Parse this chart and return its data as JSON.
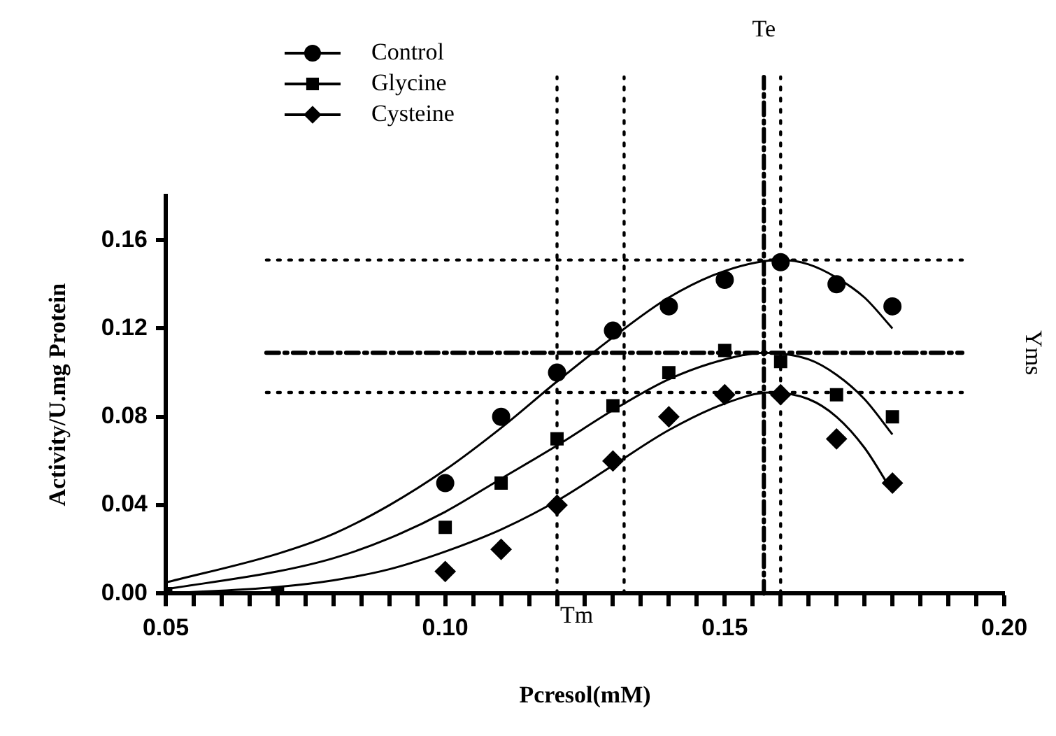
{
  "chart_data": {
    "type": "scatter",
    "xlabel": "Pcresol(mM)",
    "ylabel": "Activity/U.mg Protein",
    "xlim": [
      0.05,
      0.2
    ],
    "ylim": [
      0,
      0.18
    ],
    "xticks": [
      0.05,
      {
        "value": 0.055,
        "label": null
      },
      {
        "value": 0.06,
        "label": null
      },
      {
        "value": 0.065,
        "label": null
      },
      {
        "value": 0.07,
        "label": null
      },
      {
        "value": 0.075,
        "label": null
      },
      {
        "value": 0.08,
        "label": null
      },
      {
        "value": 0.085,
        "label": null
      },
      {
        "value": 0.09,
        "label": null
      },
      {
        "value": 0.095,
        "label": null
      },
      {
        "value": 0.1,
        "label": "0.10"
      },
      {
        "value": 0.105,
        "label": null
      },
      {
        "value": 0.11,
        "label": null
      },
      {
        "value": 0.115,
        "label": null
      },
      {
        "value": 0.12,
        "label": null
      },
      {
        "value": 0.125,
        "label": null
      },
      {
        "value": 0.13,
        "label": null
      },
      {
        "value": 0.135,
        "label": null
      },
      {
        "value": 0.14,
        "label": null
      },
      {
        "value": 0.145,
        "label": null
      },
      0.15,
      {
        "value": 0.155,
        "label": null
      },
      {
        "value": 0.16,
        "label": null
      },
      {
        "value": 0.165,
        "label": null
      },
      {
        "value": 0.17,
        "label": null
      },
      {
        "value": 0.175,
        "label": null
      },
      {
        "value": 0.18,
        "label": null
      },
      {
        "value": 0.185,
        "label": null
      },
      {
        "value": 0.19,
        "label": null
      },
      {
        "value": 0.195,
        "label": null
      },
      {
        "value": 0.2,
        "label": "0.20"
      }
    ],
    "yticks": [
      {
        "value": 0,
        "label": "0.00"
      },
      0.04,
      0.08,
      0.12,
      0.16
    ],
    "grid": false,
    "legend": "top left",
    "series": [
      {
        "name": "Control",
        "color": "#000000",
        "marker": "circle",
        "x": [
          0.1,
          0.11,
          0.12,
          0.13,
          0.14,
          0.15,
          0.16,
          0.17,
          0.18
        ],
        "values": [
          0.05,
          0.08,
          0.1,
          0.119,
          0.13,
          0.142,
          0.15,
          0.14,
          0.13
        ]
      },
      {
        "name": "Glycine",
        "color": "#000000",
        "marker": "square",
        "x": [
          0.05,
          0.07,
          0.1,
          0.11,
          0.12,
          0.13,
          0.14,
          0.15,
          0.16,
          0.17,
          0.18
        ],
        "values": [
          0,
          0,
          0.03,
          0.05,
          0.07,
          0.085,
          0.1,
          0.11,
          0.105,
          0.09,
          0.08
        ]
      },
      {
        "name": "Cysteine",
        "color": "#000000",
        "marker": "diamond",
        "x": [
          0.1,
          0.11,
          0.12,
          0.13,
          0.14,
          0.15,
          0.16,
          0.17,
          0.18
        ],
        "values": [
          0.01,
          0.02,
          0.04,
          0.06,
          0.08,
          0.09,
          0.09,
          0.07,
          0.05
        ]
      },
      {
        "type": "line",
        "color": "#000000",
        "marker": "none",
        "x": [
          0.05,
          0.07,
          0.08,
          0.09,
          0.1,
          0.11,
          0.12,
          0.13,
          0.14,
          0.15,
          0.16,
          0.165,
          0.17,
          0.175,
          0.18
        ],
        "values": [
          0.005,
          0.018,
          0.027,
          0.04,
          0.056,
          0.075,
          0.096,
          0.116,
          0.134,
          0.146,
          0.151,
          0.149,
          0.143,
          0.134,
          0.12
        ]
      },
      {
        "type": "line",
        "color": "#000000",
        "marker": "none",
        "x": [
          0.05,
          0.07,
          0.08,
          0.09,
          0.1,
          0.11,
          0.12,
          0.13,
          0.14,
          0.15,
          0.157,
          0.165,
          0.17,
          0.175,
          0.18
        ],
        "values": [
          0.002,
          0.01,
          0.016,
          0.025,
          0.037,
          0.052,
          0.067,
          0.083,
          0.097,
          0.106,
          0.109,
          0.106,
          0.099,
          0.088,
          0.072
        ]
      },
      {
        "type": "line",
        "color": "#000000",
        "marker": "none",
        "x": [
          0.05,
          0.07,
          0.08,
          0.09,
          0.1,
          0.11,
          0.12,
          0.13,
          0.14,
          0.15,
          0.158,
          0.165,
          0.17,
          0.175,
          0.18
        ],
        "values": [
          0,
          0.003,
          0.006,
          0.011,
          0.019,
          0.029,
          0.042,
          0.058,
          0.074,
          0.086,
          0.091,
          0.088,
          0.08,
          0.066,
          0.046
        ]
      }
    ],
    "ref_lines": [
      {
        "axis": "y",
        "value": 0.151,
        "line_style": "dotted",
        "color": "#000000"
      },
      {
        "axis": "y",
        "value": 0.109,
        "label": "Yms",
        "line_style": "dashed",
        "color": "#000000"
      },
      {
        "axis": "y",
        "value": 0.091,
        "line_style": "dotted",
        "color": "#000000"
      },
      {
        "axis": "x",
        "value": 0.12,
        "line_style": "dotted",
        "color": "#000000"
      },
      {
        "axis": "x",
        "value": 0.132,
        "line_style": "dotted",
        "color": "#000000"
      },
      {
        "axis": "x",
        "value": 0.157,
        "label": "Te",
        "line_style": "dashed",
        "color": "#000000"
      },
      {
        "axis": "x",
        "value": 0.16,
        "line_style": "dotted",
        "color": "#000000"
      }
    ],
    "annotations": [
      "Tm"
    ]
  }
}
